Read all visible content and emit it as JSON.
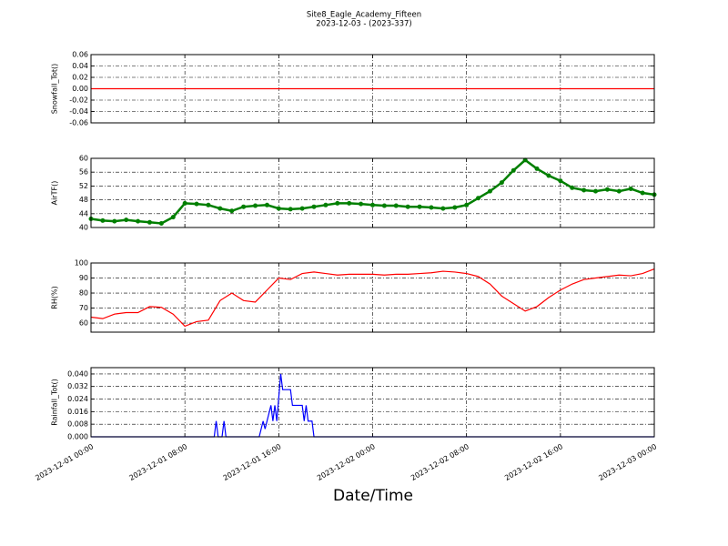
{
  "title": "Site8_Eagle_Academy_Fifteen",
  "subtitle": "2023-12-03 - (2023-337)",
  "xlabel": "Date/Time",
  "chart_data": [
    {
      "type": "line",
      "ylabel": "Snowfall_Tot()",
      "color": "#ff0000",
      "x": [
        "2023-12-01 00:00",
        "2023-12-03 00:00"
      ],
      "values": [
        0,
        0
      ],
      "xlim": [
        "2023-12-01 00:00",
        "2023-12-03 00:00"
      ],
      "xticks": [
        "2023-12-01 00:00",
        "2023-12-01 08:00",
        "2023-12-01 16:00",
        "2023-12-02 00:00",
        "2023-12-02 08:00",
        "2023-12-02 16:00",
        "2023-12-03 00:00"
      ],
      "ylim": [
        -0.06,
        0.06
      ],
      "yticks": [
        {
          "value": -0.06,
          "label": "-0.06"
        },
        {
          "value": -0.04,
          "label": "-0.04"
        },
        {
          "value": -0.02,
          "label": "-0.02"
        },
        {
          "value": 0,
          "label": "0.00"
        },
        {
          "value": 0.02,
          "label": "0.02"
        },
        {
          "value": 0.04,
          "label": "0.04"
        },
        {
          "value": 0.06,
          "label": "0.06"
        }
      ],
      "grid": true
    },
    {
      "type": "line",
      "markers": true,
      "ylabel": "AirTF()",
      "color": "#007f00",
      "x": [
        "2023-12-01 00:00",
        "2023-12-01 01:00",
        "2023-12-01 02:00",
        "2023-12-01 03:00",
        "2023-12-01 04:00",
        "2023-12-01 05:00",
        "2023-12-01 06:00",
        "2023-12-01 07:00",
        "2023-12-01 08:00",
        "2023-12-01 09:00",
        "2023-12-01 10:00",
        "2023-12-01 11:00",
        "2023-12-01 12:00",
        "2023-12-01 13:00",
        "2023-12-01 14:00",
        "2023-12-01 15:00",
        "2023-12-01 16:00",
        "2023-12-01 17:00",
        "2023-12-01 18:00",
        "2023-12-01 19:00",
        "2023-12-01 20:00",
        "2023-12-01 21:00",
        "2023-12-01 22:00",
        "2023-12-01 23:00",
        "2023-12-02 00:00",
        "2023-12-02 01:00",
        "2023-12-02 02:00",
        "2023-12-02 03:00",
        "2023-12-02 04:00",
        "2023-12-02 05:00",
        "2023-12-02 06:00",
        "2023-12-02 07:00",
        "2023-12-02 08:00",
        "2023-12-02 09:00",
        "2023-12-02 10:00",
        "2023-12-02 11:00",
        "2023-12-02 12:00",
        "2023-12-02 13:00",
        "2023-12-02 14:00",
        "2023-12-02 15:00",
        "2023-12-02 16:00",
        "2023-12-02 17:00",
        "2023-12-02 18:00",
        "2023-12-02 19:00",
        "2023-12-02 20:00",
        "2023-12-02 21:00",
        "2023-12-02 22:00",
        "2023-12-02 23:00",
        "2023-12-03 00:00"
      ],
      "values": [
        42.5,
        42,
        41.8,
        42.2,
        41.8,
        41.5,
        41.2,
        43,
        47,
        46.8,
        46.5,
        45.5,
        44.8,
        46,
        46.3,
        46.5,
        45.5,
        45.3,
        45.5,
        46,
        46.5,
        47,
        47,
        46.8,
        46.5,
        46.3,
        46.3,
        46,
        46,
        45.8,
        45.5,
        45.8,
        46.5,
        48.5,
        50.5,
        53,
        56.5,
        59.5,
        57,
        55,
        53.5,
        51.5,
        50.8,
        50.5,
        51,
        50.5,
        51.2,
        50,
        49.5
      ],
      "xlim": [
        "2023-12-01 00:00",
        "2023-12-03 00:00"
      ],
      "xticks": [
        "2023-12-01 00:00",
        "2023-12-01 08:00",
        "2023-12-01 16:00",
        "2023-12-02 00:00",
        "2023-12-02 08:00",
        "2023-12-02 16:00",
        "2023-12-03 00:00"
      ],
      "ylim": [
        40,
        60
      ],
      "yticks": [
        40,
        44,
        48,
        52,
        56,
        60
      ],
      "grid": true
    },
    {
      "type": "line",
      "ylabel": "RH(%)",
      "color": "#ff0000",
      "x": [
        "2023-12-01 00:00",
        "2023-12-01 01:00",
        "2023-12-01 02:00",
        "2023-12-01 03:00",
        "2023-12-01 04:00",
        "2023-12-01 05:00",
        "2023-12-01 06:00",
        "2023-12-01 07:00",
        "2023-12-01 08:00",
        "2023-12-01 09:00",
        "2023-12-01 10:00",
        "2023-12-01 11:00",
        "2023-12-01 12:00",
        "2023-12-01 13:00",
        "2023-12-01 14:00",
        "2023-12-01 15:00",
        "2023-12-01 16:00",
        "2023-12-01 17:00",
        "2023-12-01 18:00",
        "2023-12-01 19:00",
        "2023-12-01 20:00",
        "2023-12-01 21:00",
        "2023-12-01 22:00",
        "2023-12-01 23:00",
        "2023-12-02 00:00",
        "2023-12-02 01:00",
        "2023-12-02 02:00",
        "2023-12-02 03:00",
        "2023-12-02 04:00",
        "2023-12-02 05:00",
        "2023-12-02 06:00",
        "2023-12-02 07:00",
        "2023-12-02 08:00",
        "2023-12-02 09:00",
        "2023-12-02 10:00",
        "2023-12-02 11:00",
        "2023-12-02 12:00",
        "2023-12-02 13:00",
        "2023-12-02 14:00",
        "2023-12-02 15:00",
        "2023-12-02 16:00",
        "2023-12-02 17:00",
        "2023-12-02 18:00",
        "2023-12-02 19:00",
        "2023-12-02 20:00",
        "2023-12-02 21:00",
        "2023-12-02 22:00",
        "2023-12-02 23:00",
        "2023-12-03 00:00"
      ],
      "values": [
        64,
        63,
        66,
        67,
        67,
        71,
        70.5,
        66,
        58,
        61,
        62,
        75,
        80,
        75,
        74,
        82,
        90,
        89,
        93,
        94,
        93,
        92,
        92.5,
        92.5,
        92.5,
        92,
        92.5,
        92.5,
        93,
        93.5,
        94.5,
        94,
        93,
        91,
        86,
        78,
        73,
        68,
        71,
        77,
        82,
        86,
        89,
        90,
        91,
        92,
        91.5,
        93,
        96
      ],
      "xlim": [
        "2023-12-01 00:00",
        "2023-12-03 00:00"
      ],
      "xticks": [
        "2023-12-01 00:00",
        "2023-12-01 08:00",
        "2023-12-01 16:00",
        "2023-12-02 00:00",
        "2023-12-02 08:00",
        "2023-12-02 16:00",
        "2023-12-03 00:00"
      ],
      "ylim": [
        54,
        100
      ],
      "yticks": [
        60,
        70,
        80,
        90,
        100
      ],
      "grid": true
    },
    {
      "type": "line",
      "ylabel": "Rainfall_Tot()",
      "color": "#0000ff",
      "x": [
        "2023-12-01 00:00",
        "2023-12-01 10:30",
        "2023-12-01 10:40",
        "2023-12-01 10:50",
        "2023-12-01 11:10",
        "2023-12-01 11:20",
        "2023-12-01 11:30",
        "2023-12-01 14:20",
        "2023-12-01 14:40",
        "2023-12-01 14:50",
        "2023-12-01 15:20",
        "2023-12-01 15:30",
        "2023-12-01 15:40",
        "2023-12-01 15:50",
        "2023-12-01 16:10",
        "2023-12-01 16:20",
        "2023-12-01 17:00",
        "2023-12-01 17:10",
        "2023-12-01 18:00",
        "2023-12-01 18:10",
        "2023-12-01 18:20",
        "2023-12-01 18:30",
        "2023-12-01 18:50",
        "2023-12-01 19:00",
        "2023-12-03 00:00"
      ],
      "values": [
        0,
        0,
        0.01,
        0,
        0,
        0.01,
        0,
        0,
        0.01,
        0.005,
        0.02,
        0.01,
        0.02,
        0.01,
        0.04,
        0.03,
        0.03,
        0.02,
        0.02,
        0.01,
        0.02,
        0.01,
        0.01,
        0,
        0
      ],
      "xlim": [
        "2023-12-01 00:00",
        "2023-12-03 00:00"
      ],
      "xticks": [
        "2023-12-01 00:00",
        "2023-12-01 08:00",
        "2023-12-01 16:00",
        "2023-12-02 00:00",
        "2023-12-02 08:00",
        "2023-12-02 16:00",
        "2023-12-03 00:00"
      ],
      "ylim": [
        0,
        0.044
      ],
      "yticks": [
        {
          "value": 0,
          "label": "0.000"
        },
        {
          "value": 0.008,
          "label": "0.008"
        },
        {
          "value": 0.016,
          "label": "0.016"
        },
        {
          "value": 0.024,
          "label": "0.024"
        },
        {
          "value": 0.032,
          "label": "0.032"
        },
        {
          "value": 0.04,
          "label": "0.040"
        }
      ],
      "grid": true
    }
  ]
}
